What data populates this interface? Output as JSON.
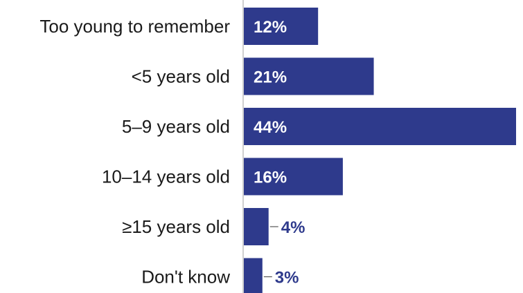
{
  "chart_data": {
    "type": "bar",
    "orientation": "horizontal",
    "categories": [
      "Too young to remember",
      "<5 years old",
      "5–9 years old",
      "10–14 years old",
      "≥15 years old",
      "Don't know"
    ],
    "values": [
      12,
      21,
      44,
      16,
      4,
      3
    ],
    "value_labels": [
      "12%",
      "21%",
      "44%",
      "16%",
      "4%",
      "3%"
    ],
    "unit": "%",
    "title": "",
    "xlabel": "",
    "ylabel": "",
    "xlim": [
      0,
      44
    ],
    "grid": false,
    "legend": "none",
    "colors": {
      "bar": "#2e3a8c",
      "label_inside": "#ffffff",
      "label_outside": "#2e3a8c",
      "axis": "#bfbfbf",
      "text": "#1a1a1a"
    }
  }
}
